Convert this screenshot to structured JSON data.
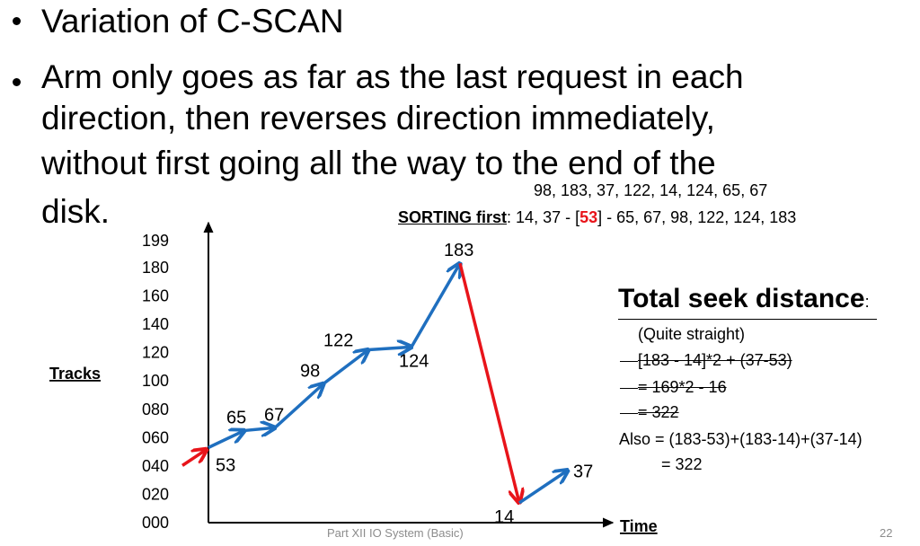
{
  "bullets": [
    {
      "lines": [
        "Variation of C-SCAN"
      ]
    },
    {
      "lines": [
        "Arm only goes as far as the last request in each",
        "direction, then reverses direction immediately,",
        "without first going all the way to the end of the",
        "disk."
      ]
    }
  ],
  "request_queue": "98, 183, 37, 122, 14, 124, 65, 67",
  "sorting": {
    "label": "SORTING first",
    "colon": ":",
    "before": "14, 37 - [",
    "head": "53",
    "after": "] - 65, 67, 98, 122, 124, 183"
  },
  "total_seek": {
    "title": "Total seek distance",
    "colon": ":",
    "note": "(Quite straight)",
    "struck_lines": [
      "[183 - 14]*2 + (37-53)",
      "= 169*2 - 16",
      "= 322"
    ],
    "also_line": "Also = (183-53)+(183-14)+(37-14)",
    "result_line": "= 322"
  },
  "chart_data": {
    "type": "line",
    "ylabel": "Tracks",
    "xlabel": "Time",
    "y_ticks": [
      "000",
      "020",
      "040",
      "060",
      "080",
      "100",
      "120",
      "140",
      "160",
      "180",
      "199"
    ],
    "ylim": [
      0,
      199
    ],
    "head_start": 53,
    "sequence": [
      53,
      65,
      67,
      98,
      122,
      124,
      183,
      14,
      37
    ],
    "point_labels": [
      "53",
      "65",
      "67",
      "98",
      "122",
      "124",
      "183",
      "14",
      "37"
    ],
    "colors": {
      "forward": "#1f6fbf",
      "reverse": "#e8141a",
      "entry": "#e8141a"
    }
  },
  "footer": {
    "caption": "Part XII IO System (Basic)",
    "page_number": "22"
  }
}
